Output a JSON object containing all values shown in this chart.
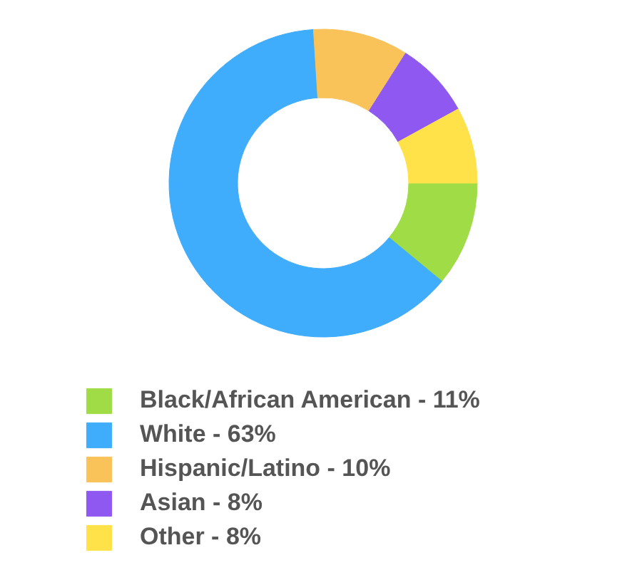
{
  "chart_data": {
    "type": "donut",
    "categories": [
      "Black/African American",
      "White",
      "Hispanic/Latino",
      "Asian",
      "Other"
    ],
    "values": [
      11,
      63,
      10,
      8,
      8
    ],
    "value_labels": [
      "11%",
      "63%",
      "10%",
      "8%",
      "8%"
    ],
    "colors": [
      "#a0dc46",
      "#3fadfc",
      "#fac35a",
      "#8f58f0",
      "#ffe24a"
    ],
    "legend": "bottom"
  }
}
